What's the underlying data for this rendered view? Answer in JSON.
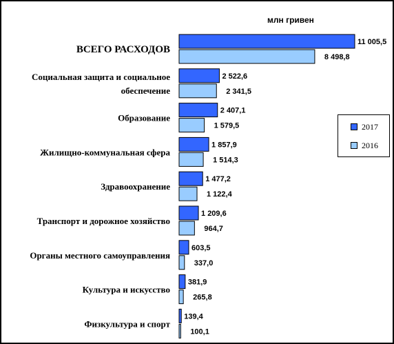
{
  "chart_data": {
    "type": "bar",
    "orientation": "horizontal",
    "unit": "млн гривен",
    "categories": [
      "ВСЕГО РАСХОДОВ",
      "Социальная защита и  социальное обеспечение",
      "Образование",
      "Жилищно-коммунальная сфера",
      "Здравоохранение",
      "Транспорт и дорожное хозяйство",
      "Органы местного самоуправления",
      "Культура и искусство",
      "Физкультура и спорт"
    ],
    "category_lines": [
      [
        "ВСЕГО РАСХОДОВ"
      ],
      [
        "Социальная защита и  социальное",
        "обеспечение"
      ],
      [
        "Образование"
      ],
      [
        "Жилищно-коммунальная сфера"
      ],
      [
        "Здравоохранение"
      ],
      [
        "Транспорт и дорожное хозяйство"
      ],
      [
        "Органы местного самоуправления"
      ],
      [
        "Культура и искусство"
      ],
      [
        "Физкультура и спорт"
      ]
    ],
    "series": [
      {
        "name": "2017",
        "color": "#3366ff",
        "values": [
          11005.5,
          2522.6,
          2407.1,
          1857.9,
          1477.2,
          1209.6,
          603.5,
          381.9,
          139.4
        ],
        "labels": [
          "11 005,5",
          "2 522,6",
          "2 407,1",
          "1 857,9",
          "1 477,2",
          "1 209,6",
          "603,5",
          "381,9",
          "139,4"
        ]
      },
      {
        "name": "2016",
        "color": "#99ccff",
        "values": [
          8498.8,
          2341.5,
          1579.5,
          1514.3,
          1122.4,
          964.7,
          337.0,
          265.8,
          100.1
        ],
        "labels": [
          "8 498,8",
          "2 341,5",
          "1 579,5",
          "1 514,3",
          "1 122,4",
          "964,7",
          "337,0",
          "265,8",
          "100,1"
        ]
      }
    ],
    "legend": {
      "position": "right",
      "entries": [
        "2017",
        "2016"
      ]
    },
    "grid": false
  }
}
